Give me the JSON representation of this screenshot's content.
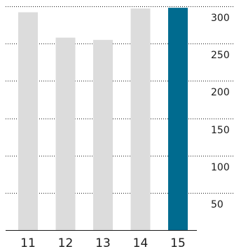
{
  "chart_data": {
    "type": "bar",
    "categories": [
      "11",
      "12",
      "13",
      "14",
      "15"
    ],
    "values": [
      292,
      258,
      255,
      297,
      298
    ],
    "highlight_index": 4,
    "colors": {
      "default": "#dcdcdc",
      "highlight": "#006b8f",
      "text": "#1a1a1a"
    },
    "ylim": [
      0,
      300
    ],
    "yticks": [
      50,
      100,
      150,
      200,
      250,
      300
    ],
    "ytick_labels": [
      "50",
      "100",
      "150",
      "200",
      "250",
      "300"
    ],
    "grid": true,
    "y_axis_position": "right",
    "title": "",
    "xlabel": "",
    "ylabel": ""
  }
}
